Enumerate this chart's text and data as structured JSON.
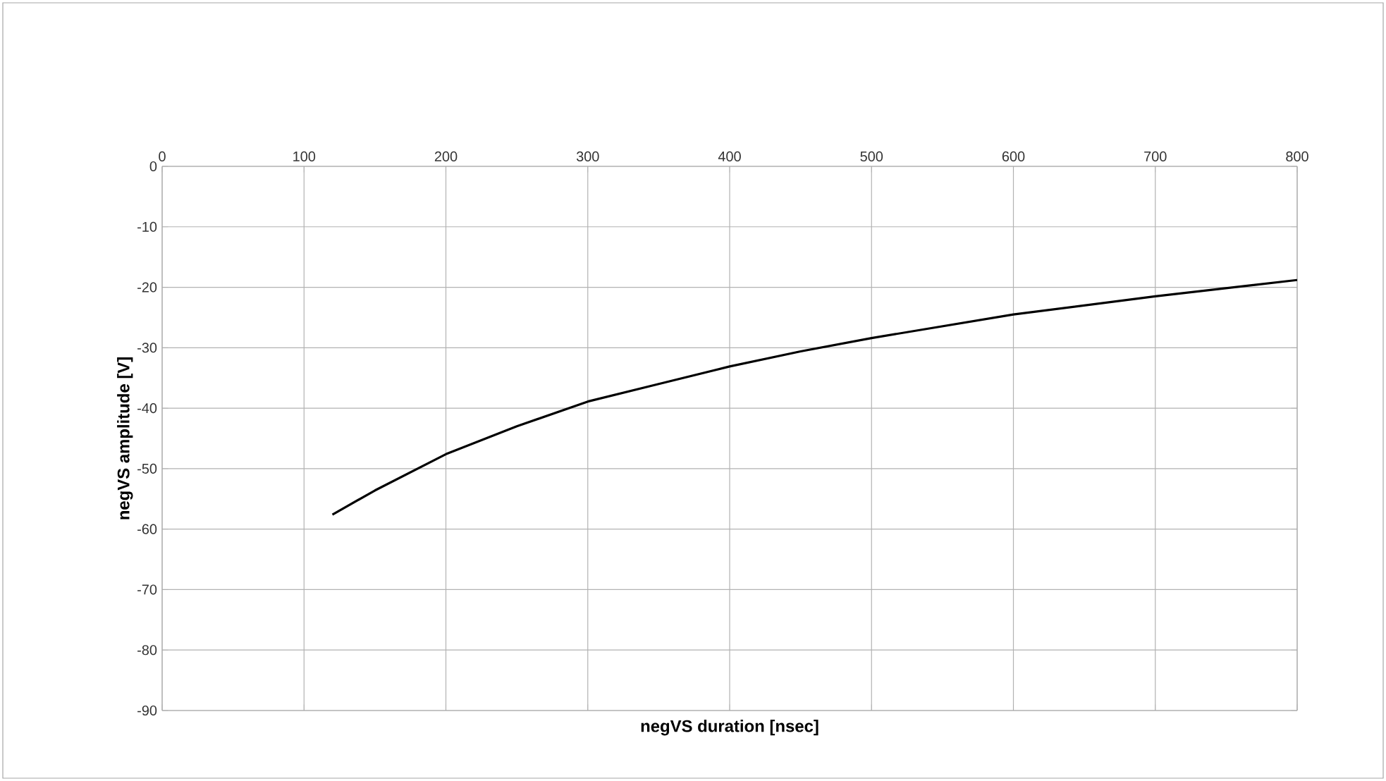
{
  "chart_data": {
    "type": "line",
    "xlabel": "negVS duration [nsec]",
    "ylabel": "negVS amplitude [V]",
    "x": [
      120,
      150,
      200,
      250,
      300,
      350,
      400,
      450,
      500,
      600,
      700,
      800
    ],
    "series": [
      {
        "color": "#000000",
        "values": [
          -57.6,
          -53.6,
          -47.6,
          -43,
          -38.9,
          -36,
          -33.1,
          -30.6,
          -28.4,
          -24.5,
          -21.5,
          -18.8
        ]
      }
    ],
    "xlim": [
      0,
      800
    ],
    "ylim": [
      -90,
      0
    ],
    "xticks": [
      0,
      100,
      200,
      300,
      400,
      500,
      600,
      700,
      800
    ],
    "yticks": [
      0,
      -10,
      -20,
      -30,
      -40,
      -50,
      -60,
      -70,
      -80,
      -90
    ],
    "grid": true,
    "marker": "none",
    "line_style": "solid"
  }
}
